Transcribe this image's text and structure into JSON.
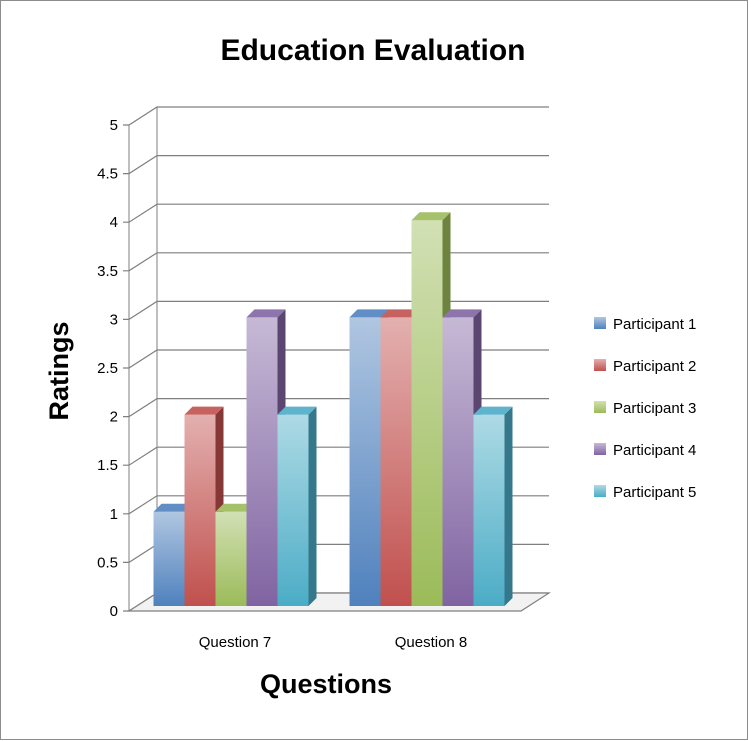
{
  "chart_data": {
    "type": "bar",
    "title": "Education Evaluation",
    "xlabel": "Questions",
    "ylabel": "Ratings",
    "categories": [
      "Question 7",
      "Question 8"
    ],
    "ylim": [
      0,
      5
    ],
    "yticks": [
      "0",
      "0.5",
      "1",
      "1.5",
      "2",
      "2.5",
      "3",
      "3.5",
      "4",
      "4.5",
      "5"
    ],
    "grid": true,
    "legend_position": "right",
    "series": [
      {
        "name": "Participant 1",
        "values": [
          1,
          3
        ],
        "color": "#4f81bd"
      },
      {
        "name": "Participant 2",
        "values": [
          2,
          3
        ],
        "color": "#c0504d"
      },
      {
        "name": "Participant 3",
        "values": [
          1,
          4
        ],
        "color": "#9bbb59"
      },
      {
        "name": "Participant 4",
        "values": [
          3,
          3
        ],
        "color": "#8064a2"
      },
      {
        "name": "Participant 5",
        "values": [
          2,
          2
        ],
        "color": "#4bacc6"
      }
    ]
  }
}
